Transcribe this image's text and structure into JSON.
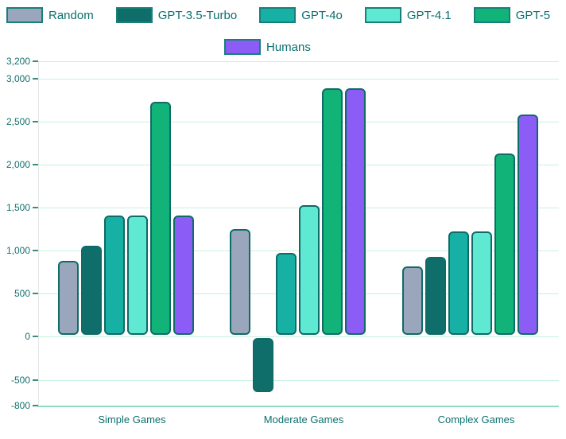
{
  "legend": {
    "rows": [
      [
        {
          "label": "Random",
          "series": 0
        },
        {
          "label": "GPT-3.5-Turbo",
          "series": 1
        },
        {
          "label": "GPT-4o",
          "series": 2
        },
        {
          "label": "GPT-4.1",
          "series": 3
        },
        {
          "label": "GPT-5",
          "series": 4
        }
      ],
      [
        {
          "label": "Humans",
          "series": 5
        }
      ]
    ]
  },
  "chart_data": {
    "type": "bar",
    "title": "",
    "xlabel": "",
    "ylabel": "",
    "categories": [
      "Simple Games",
      "Moderate Games",
      "Complex Games"
    ],
    "series": [
      {
        "name": "Random",
        "color": "#9aa6bb",
        "values": [
          880,
          1250,
          820
        ]
      },
      {
        "name": "GPT-3.5-Turbo",
        "color": "#106e6a",
        "values": [
          1060,
          -640,
          930
        ]
      },
      {
        "name": "GPT-4o",
        "color": "#17b0a4",
        "values": [
          1410,
          970,
          1220
        ]
      },
      {
        "name": "GPT-4.1",
        "color": "#5fe9d3",
        "values": [
          1410,
          1530,
          1220
        ]
      },
      {
        "name": "GPT-5",
        "color": "#12b378",
        "values": [
          2730,
          2890,
          2130
        ]
      },
      {
        "name": "Humans",
        "color": "#8b5cf6",
        "values": [
          1410,
          2890,
          2580
        ]
      }
    ],
    "ylim": [
      -800,
      3200
    ],
    "yticks": [
      3200,
      3000,
      2500,
      2000,
      1500,
      1000,
      500,
      0,
      -500,
      -800
    ],
    "ytick_labels": [
      "3,200",
      "3,000",
      "2,500",
      "2,000",
      "1,500",
      "1,000",
      "500",
      "0",
      "-500",
      "-800"
    ],
    "grid": "horizontal",
    "legend_position": "top",
    "bar_style": {
      "border_color": "#0e6b67",
      "corner_radius": 6
    }
  },
  "colors": {
    "text_teal": "#0d6f6f",
    "gridline": "#c9f1e0",
    "bottom_line": "#8edbc4",
    "axis_line": "#e2e6e6",
    "tick": "#3e8a81",
    "legend_swatch_border": "#17807a"
  }
}
